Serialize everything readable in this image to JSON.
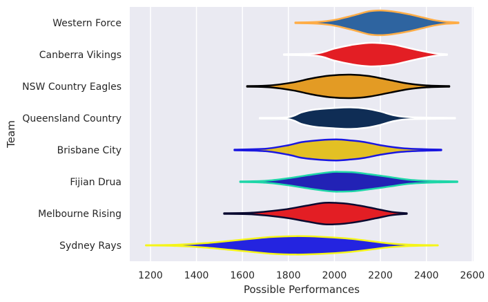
{
  "chart_data": {
    "type": "violin",
    "xlabel": "Possible Performances",
    "ylabel": "Team",
    "xlim": [
      1110,
      2605
    ],
    "xticks": [
      1200,
      1400,
      1600,
      1800,
      2000,
      2200,
      2400,
      2600
    ],
    "grid": "x",
    "background": "#eaeaf2",
    "categories": [
      "Western Force",
      "Canberra Vikings",
      "NSW Country Eagles",
      "Queensland Country",
      "Brisbane City",
      "Fijian Drua",
      "Melbourne Rising",
      "Sydney Rays"
    ],
    "series": [
      {
        "category": "Western Force",
        "fill": "#2e64a0",
        "edge": "#ffad47",
        "range": [
          1830,
          2540
        ],
        "profile": [
          [
            1830,
            0.02
          ],
          [
            1930,
            0.06
          ],
          [
            2000,
            0.18
          ],
          [
            2080,
            0.45
          ],
          [
            2150,
            0.72
          ],
          [
            2200,
            0.78
          ],
          [
            2250,
            0.72
          ],
          [
            2320,
            0.55
          ],
          [
            2380,
            0.35
          ],
          [
            2430,
            0.18
          ],
          [
            2480,
            0.07
          ],
          [
            2540,
            0.02
          ]
        ]
      },
      {
        "category": "Canberra Vikings",
        "fill": "#e31e24",
        "edge": "#ffffff",
        "range": [
          1780,
          2490
        ],
        "profile": [
          [
            1780,
            0.02
          ],
          [
            1900,
            0.05
          ],
          [
            1950,
            0.15
          ],
          [
            2000,
            0.38
          ],
          [
            2080,
            0.62
          ],
          [
            2150,
            0.74
          ],
          [
            2200,
            0.72
          ],
          [
            2260,
            0.62
          ],
          [
            2320,
            0.42
          ],
          [
            2390,
            0.2
          ],
          [
            2440,
            0.07
          ],
          [
            2490,
            0.02
          ]
        ]
      },
      {
        "category": "NSW Country Eagles",
        "fill": "#e39b24",
        "edge": "#000000",
        "range": [
          1620,
          2500
        ],
        "profile": [
          [
            1620,
            0.02
          ],
          [
            1720,
            0.06
          ],
          [
            1820,
            0.25
          ],
          [
            1900,
            0.5
          ],
          [
            1980,
            0.68
          ],
          [
            2070,
            0.74
          ],
          [
            2150,
            0.65
          ],
          [
            2240,
            0.4
          ],
          [
            2320,
            0.18
          ],
          [
            2400,
            0.06
          ],
          [
            2500,
            0.02
          ]
        ]
      },
      {
        "category": "Queensland Country",
        "fill": "#0f2d55",
        "edge": "#ffffff",
        "range": [
          1675,
          2525
        ],
        "profile": [
          [
            1675,
            0.02
          ],
          [
            1800,
            0.06
          ],
          [
            1860,
            0.38
          ],
          [
            1920,
            0.55
          ],
          [
            2000,
            0.64
          ],
          [
            2070,
            0.68
          ],
          [
            2140,
            0.6
          ],
          [
            2200,
            0.42
          ],
          [
            2260,
            0.18
          ],
          [
            2330,
            0.06
          ],
          [
            2525,
            0.02
          ]
        ]
      },
      {
        "category": "Brisbane City",
        "fill": "#e3c024",
        "edge": "#1a17e0",
        "range": [
          1565,
          2465
        ],
        "profile": [
          [
            1565,
            0.02
          ],
          [
            1700,
            0.08
          ],
          [
            1800,
            0.3
          ],
          [
            1860,
            0.5
          ],
          [
            1940,
            0.62
          ],
          [
            2010,
            0.66
          ],
          [
            2070,
            0.6
          ],
          [
            2130,
            0.5
          ],
          [
            2200,
            0.3
          ],
          [
            2290,
            0.12
          ],
          [
            2380,
            0.05
          ],
          [
            2465,
            0.02
          ]
        ]
      },
      {
        "category": "Fijian Drua",
        "fill": "#2222b5",
        "edge": "#1fd6a8",
        "range": [
          1590,
          2535
        ],
        "profile": [
          [
            1590,
            0.02
          ],
          [
            1700,
            0.06
          ],
          [
            1800,
            0.22
          ],
          [
            1900,
            0.45
          ],
          [
            1980,
            0.6
          ],
          [
            2020,
            0.62
          ],
          [
            2080,
            0.6
          ],
          [
            2150,
            0.48
          ],
          [
            2240,
            0.3
          ],
          [
            2330,
            0.12
          ],
          [
            2430,
            0.05
          ],
          [
            2535,
            0.02
          ]
        ]
      },
      {
        "category": "Melbourne Rising",
        "fill": "#e31e24",
        "edge": "#0a0a30",
        "range": [
          1520,
          2315
        ],
        "profile": [
          [
            1520,
            0.02
          ],
          [
            1650,
            0.06
          ],
          [
            1780,
            0.25
          ],
          [
            1880,
            0.5
          ],
          [
            1960,
            0.68
          ],
          [
            2040,
            0.64
          ],
          [
            2110,
            0.5
          ],
          [
            2180,
            0.3
          ],
          [
            2250,
            0.1
          ],
          [
            2315,
            0.02
          ]
        ]
      },
      {
        "category": "Sydney Rays",
        "fill": "#2424e0",
        "edge": "#f5f519",
        "range": [
          1180,
          2450
        ],
        "profile": [
          [
            1180,
            0.01
          ],
          [
            1300,
            0.03
          ],
          [
            1440,
            0.14
          ],
          [
            1600,
            0.36
          ],
          [
            1720,
            0.52
          ],
          [
            1830,
            0.58
          ],
          [
            1940,
            0.54
          ],
          [
            2050,
            0.44
          ],
          [
            2150,
            0.28
          ],
          [
            2240,
            0.12
          ],
          [
            2340,
            0.04
          ],
          [
            2450,
            0.01
          ]
        ]
      }
    ]
  }
}
